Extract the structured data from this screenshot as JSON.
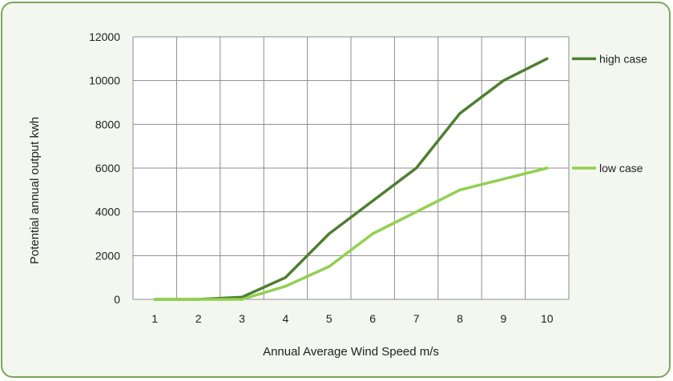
{
  "chart_data": {
    "type": "line",
    "title": "",
    "xlabel": "Annual Average Wind Speed m/s",
    "ylabel": "Potential annual output kwh",
    "categories": [
      "1",
      "2",
      "3",
      "4",
      "5",
      "6",
      "7",
      "8",
      "9",
      "10"
    ],
    "ylim": [
      0,
      12000
    ],
    "yticks": [
      "0",
      "2000",
      "4000",
      "6000",
      "8000",
      "10000",
      "12000"
    ],
    "grid": true,
    "legend_position": "right",
    "series": [
      {
        "name": "high case",
        "color": "#4e7f30",
        "values": [
          0,
          0,
          100,
          1000,
          3000,
          4500,
          6000,
          8500,
          10000,
          11000
        ]
      },
      {
        "name": "low case",
        "color": "#92d050",
        "values": [
          0,
          0,
          0,
          600,
          1500,
          3000,
          4000,
          5000,
          5500,
          6000
        ]
      }
    ]
  },
  "frame": {
    "border_color": "#7aa65a",
    "background": "#f3f7ef"
  }
}
